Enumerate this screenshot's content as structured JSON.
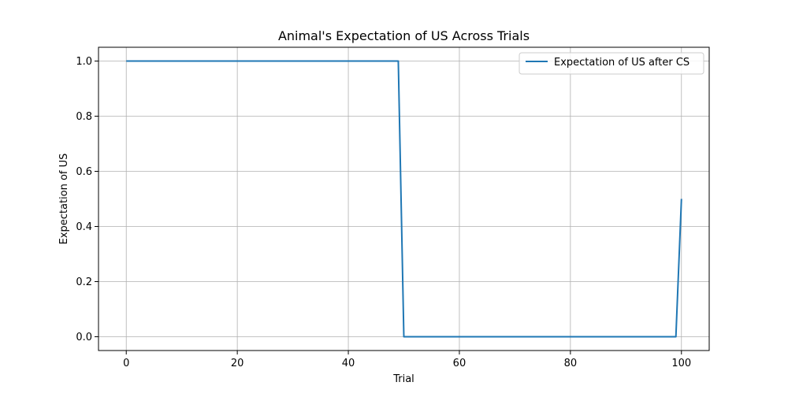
{
  "chart_data": {
    "type": "line",
    "title": "Animal's Expectation of US Across Trials",
    "xlabel": "Trial",
    "ylabel": "Expectation of US",
    "xlim": [
      -5,
      105
    ],
    "ylim": [
      -0.05,
      1.05
    ],
    "xticks": [
      0,
      20,
      40,
      60,
      80,
      100
    ],
    "yticks": [
      0.0,
      0.2,
      0.4,
      0.6,
      0.8,
      1.0
    ],
    "xtick_labels": [
      "0",
      "20",
      "40",
      "60",
      "80",
      "100"
    ],
    "ytick_labels": [
      "0.0",
      "0.2",
      "0.4",
      "0.6",
      "0.8",
      "1.0"
    ],
    "grid": true,
    "legend_position": "top-right",
    "series": [
      {
        "name": "Expectation of US after CS",
        "color": "#1f77b4",
        "x": [
          0,
          49,
          50,
          99,
          100
        ],
        "y": [
          1.0,
          1.0,
          0.0,
          0.0,
          0.5
        ]
      }
    ]
  }
}
